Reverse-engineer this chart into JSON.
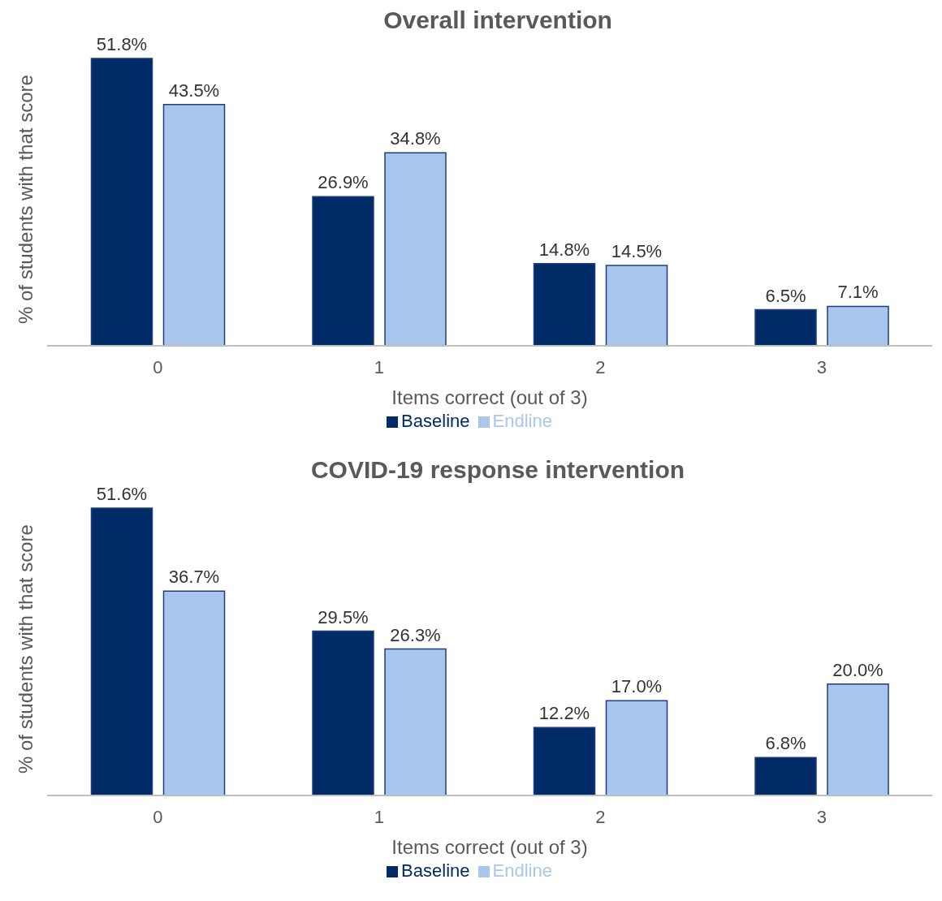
{
  "chart_data": [
    {
      "type": "bar",
      "title": "Overall intervention",
      "xlabel": "Items correct (out of 3)",
      "ylabel": "% of students with that score",
      "categories": [
        "0",
        "1",
        "2",
        "3"
      ],
      "legend": "bottom",
      "series": [
        {
          "name": "Baseline",
          "color": "#002b66",
          "values": [
            51.8,
            26.9,
            14.8,
            6.5
          ],
          "value_labels": [
            "51.8%",
            "26.9%",
            "14.8%",
            "6.5%"
          ]
        },
        {
          "name": "Endline",
          "color": "#a9c7ec",
          "values": [
            43.5,
            34.8,
            14.5,
            7.1
          ],
          "value_labels": [
            "43.5%",
            "34.8%",
            "14.5%",
            "7.1%"
          ]
        }
      ]
    },
    {
      "type": "bar",
      "title": "COVID-19 response intervention",
      "xlabel": "Items correct (out of 3)",
      "ylabel": "% of students with that score",
      "categories": [
        "0",
        "1",
        "2",
        "3"
      ],
      "legend": "bottom",
      "series": [
        {
          "name": "Baseline",
          "color": "#002b66",
          "values": [
            51.6,
            29.5,
            12.2,
            6.8
          ],
          "value_labels": [
            "51.6%",
            "29.5%",
            "12.2%",
            "6.8%"
          ]
        },
        {
          "name": "Endline",
          "color": "#a9c7ec",
          "values": [
            36.7,
            26.3,
            17.0,
            20.0
          ],
          "value_labels": [
            "36.7%",
            "26.3%",
            "17.0%",
            "20.0%"
          ]
        }
      ]
    }
  ]
}
